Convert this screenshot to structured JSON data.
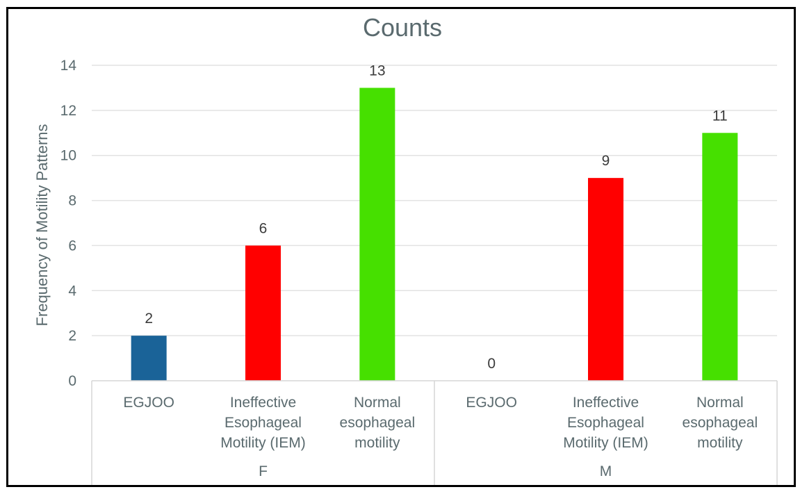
{
  "chart_data": {
    "type": "bar",
    "title": "Counts",
    "xlabel": "",
    "ylabel": "Frequency of Motility Patterns",
    "ylim": [
      0,
      14
    ],
    "yticks": [
      0,
      2,
      4,
      6,
      8,
      10,
      12,
      14
    ],
    "grid": true,
    "legend": "none",
    "groups": [
      {
        "label": "F",
        "bars": [
          {
            "category": [
              "EGJOO"
            ],
            "value": 2,
            "color": "#1a6398"
          },
          {
            "category": [
              "Ineffective",
              "Esophageal",
              "Motility (IEM)"
            ],
            "value": 6,
            "color": "#ff0000"
          },
          {
            "category": [
              "Normal",
              "esophageal",
              "motility"
            ],
            "value": 13,
            "color": "#46e000"
          }
        ]
      },
      {
        "label": "M",
        "bars": [
          {
            "category": [
              "EGJOO"
            ],
            "value": 0,
            "color": "#1a6398"
          },
          {
            "category": [
              "Ineffective",
              "Esophageal",
              "Motility (IEM)"
            ],
            "value": 9,
            "color": "#ff0000"
          },
          {
            "category": [
              "Normal",
              "esophageal",
              "motility"
            ],
            "value": 11,
            "color": "#46e000"
          }
        ]
      }
    ]
  }
}
